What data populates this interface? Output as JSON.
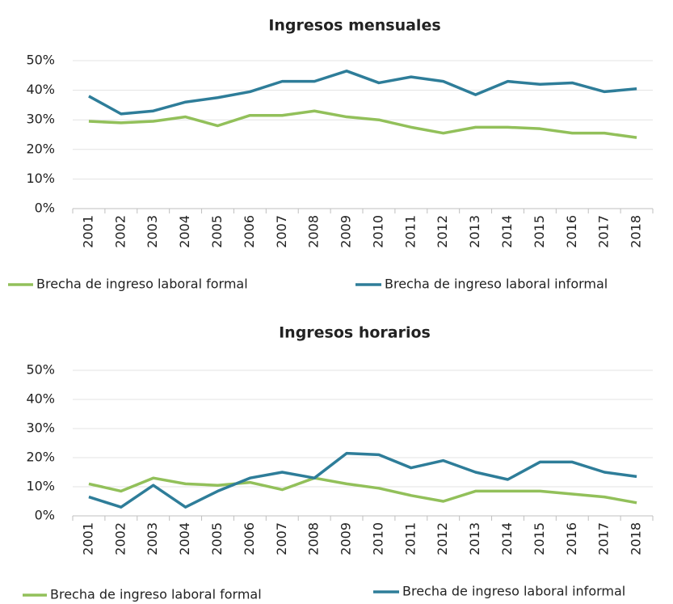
{
  "chart_data": [
    {
      "type": "line",
      "title": "Ingresos mensuales",
      "categories": [
        "2001",
        "2002",
        "2003",
        "2004",
        "2005",
        "2006",
        "2007",
        "2008",
        "2009",
        "2010",
        "2011",
        "2012",
        "2013",
        "2014",
        "2015",
        "2016",
        "2017",
        "2018"
      ],
      "series": [
        {
          "name": "Brecha de ingreso laboral formal",
          "color": "#92c05a",
          "values": [
            29.5,
            29,
            29.5,
            31,
            28,
            31.5,
            31.5,
            33,
            31,
            30,
            27.5,
            25.5,
            27.5,
            27.5,
            27,
            25.5,
            25.5,
            24
          ]
        },
        {
          "name": "Brecha de ingreso laboral informal",
          "color": "#2e7d99",
          "values": [
            38,
            32,
            33,
            36,
            37.5,
            39.5,
            43,
            43,
            46.5,
            42.5,
            44.5,
            43,
            38.5,
            43,
            42,
            42.5,
            39.5,
            40.5
          ]
        }
      ],
      "ylim": [
        0,
        50
      ],
      "yticks": [
        {
          "value": 0,
          "label": "0%"
        },
        {
          "value": 10,
          "label": "10%"
        },
        {
          "value": 20,
          "label": "20%"
        },
        {
          "value": 30,
          "label": "30%"
        },
        {
          "value": 40,
          "label": "40%"
        },
        {
          "value": 50,
          "label": "50%"
        }
      ],
      "grid": true,
      "legend": "bottom"
    },
    {
      "type": "line",
      "title": "Ingresos horarios",
      "categories": [
        "2001",
        "2002",
        "2003",
        "2004",
        "2005",
        "2006",
        "2007",
        "2008",
        "2009",
        "2010",
        "2011",
        "2012",
        "2013",
        "2014",
        "2015",
        "2016",
        "2017",
        "2018"
      ],
      "series": [
        {
          "name": "Brecha de ingreso laboral formal",
          "color": "#92c05a",
          "values": [
            11,
            8.5,
            13,
            11,
            10.5,
            11.5,
            9,
            13,
            11,
            9.5,
            7,
            5,
            8.5,
            8.5,
            8.5,
            7.5,
            6.5,
            4.5
          ]
        },
        {
          "name": "Brecha de ingreso laboral informal",
          "color": "#2e7d99",
          "values": [
            6.5,
            3,
            10.5,
            3,
            8.5,
            13,
            15,
            13,
            21.5,
            21,
            16.5,
            19,
            15,
            12.5,
            18.5,
            18.5,
            15,
            13.5
          ]
        }
      ],
      "ylim": [
        0,
        50
      ],
      "yticks": [
        {
          "value": 0,
          "label": "0%"
        },
        {
          "value": 10,
          "label": "10%"
        },
        {
          "value": 20,
          "label": "20%"
        },
        {
          "value": 30,
          "label": "30%"
        },
        {
          "value": 40,
          "label": "40%"
        },
        {
          "value": 50,
          "label": "50%"
        }
      ],
      "grid": true,
      "legend": "bottom"
    }
  ]
}
